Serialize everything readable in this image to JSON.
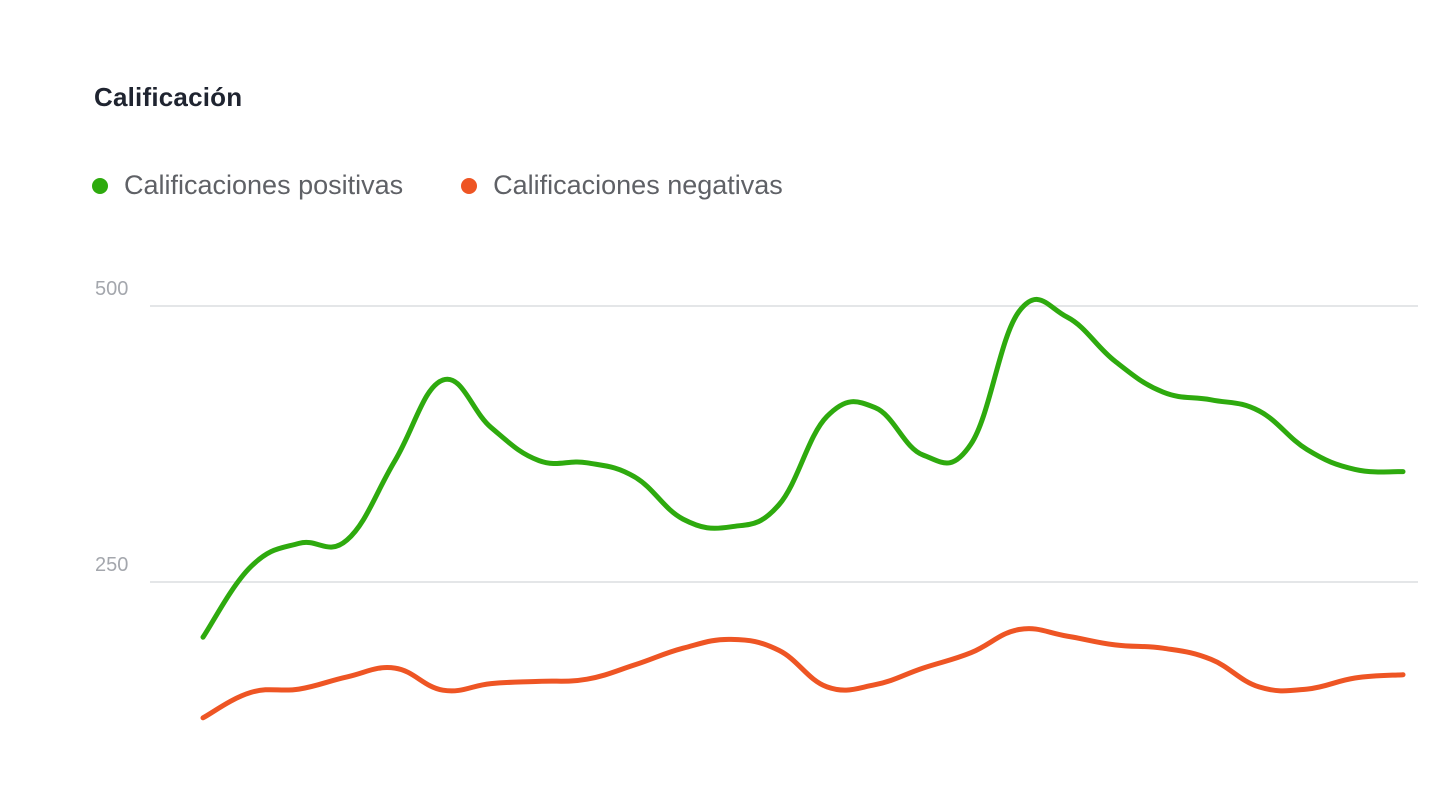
{
  "chart_data": {
    "type": "line",
    "title": "Calificación",
    "xlabel": "",
    "ylabel": "",
    "ylim": [
      126,
      500
    ],
    "yticks": [
      250,
      500
    ],
    "grid": true,
    "legend_position": "top-left",
    "smooth": true,
    "x": [
      0,
      1,
      2,
      3,
      4,
      5,
      6,
      7,
      8,
      9,
      10,
      11,
      12,
      13,
      14,
      15,
      16,
      17,
      18,
      19,
      20,
      21,
      22,
      23,
      24,
      25
    ],
    "series": [
      {
        "name": "Calificaciones positivas",
        "color": "#2eaa0e",
        "values": [
          200,
          264,
          285,
          288,
          360,
          433,
          390,
          360,
          358,
          345,
          307,
          300,
          320,
          400,
          408,
          365,
          375,
          495,
          490,
          450,
          422,
          415,
          405,
          370,
          352,
          350
        ]
      },
      {
        "name": "Calificaciones negativas",
        "color": "#ee5524",
        "values": [
          127,
          150,
          153,
          164,
          172,
          152,
          158,
          160,
          162,
          175,
          190,
          198,
          188,
          155,
          157,
          172,
          186,
          207,
          201,
          193,
          190,
          180,
          155,
          153,
          163,
          166
        ]
      }
    ]
  }
}
